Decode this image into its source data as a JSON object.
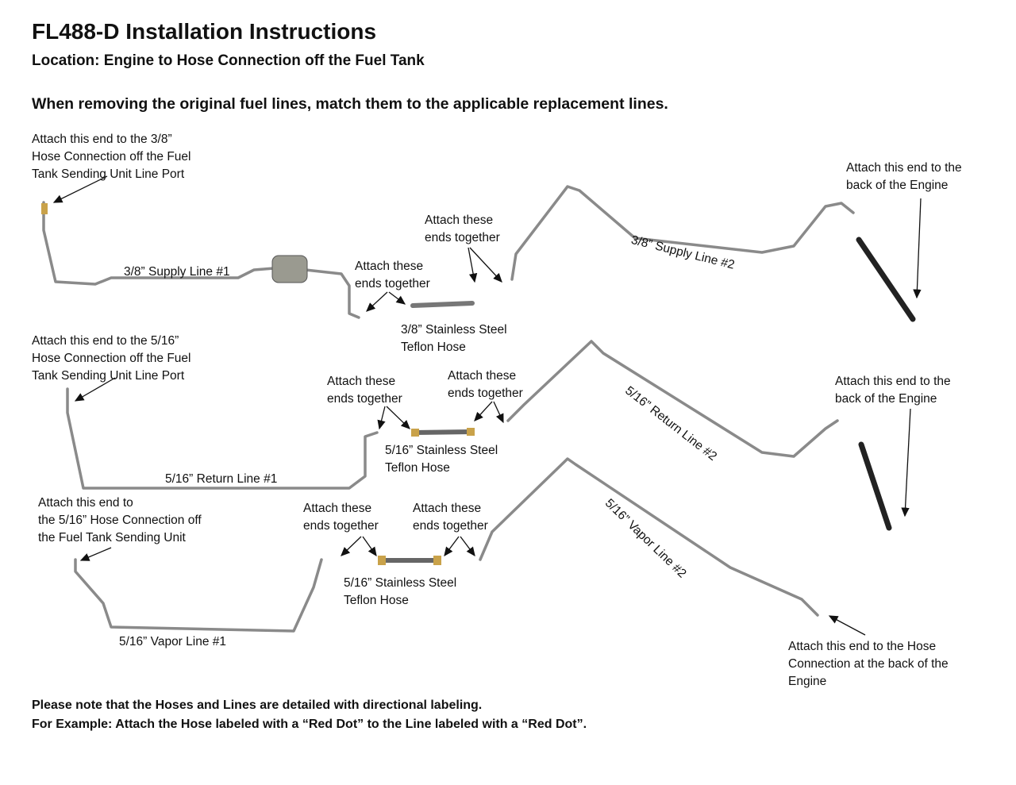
{
  "title": "FL488-D Installation Instructions",
  "location": "Location: Engine to Hose Connection off the Fuel Tank",
  "instruction": "When removing the original fuel lines, match them to the applicable replacement lines.",
  "labels": {
    "supply_tank_end": "Attach this end to the 3/8”\nHose Connection off the Fuel\nTank Sending Unit Line Port",
    "supply_engine_end": "Attach this end to the\nback of the Engine",
    "supply_join_right": "Attach these\nends together",
    "supply_join_left": "Attach these\nends together",
    "supply_line_1": "3/8” Supply Line #1",
    "supply_line_2": "3/8” Supply Line #2",
    "supply_hose": "3/8” Stainless Steel\nTeflon Hose",
    "return_tank_end": "Attach this end to the 5/16”\nHose Connection off the Fuel\nTank Sending Unit Line Port",
    "return_engine_end": "Attach this end to the\nback of the Engine",
    "return_join_left": "Attach these\nends together",
    "return_join_right": "Attach these\nends together",
    "return_line_1": "5/16” Return Line #1",
    "return_line_2": "5/16” Return Line #2",
    "return_hose": "5/16” Stainless Steel\nTeflon Hose",
    "vapor_tank_end": "Attach this end to\nthe 5/16” Hose Connection off\nthe Fuel Tank Sending Unit",
    "vapor_engine_end": "Attach this end to the Hose\nConnection at the back of the\nEngine",
    "vapor_join_left": "Attach these\nends together",
    "vapor_join_right": "Attach these\nends together",
    "vapor_line_1": "5/16” Vapor Line #1",
    "vapor_line_2": "5/16” Vapor Line #2",
    "vapor_hose": "5/16” Stainless Steel\nTeflon Hose"
  },
  "footer": {
    "note": "Please note that the Hoses and Lines are detailed with directional labeling.",
    "example": "For Example: Attach the Hose labeled with a “Red Dot” to the Line labeled with a “Red Dot”."
  },
  "colors": {
    "line": "#8a8a8a",
    "hose": "#222222",
    "fitting_brass": "#c9a24a"
  }
}
